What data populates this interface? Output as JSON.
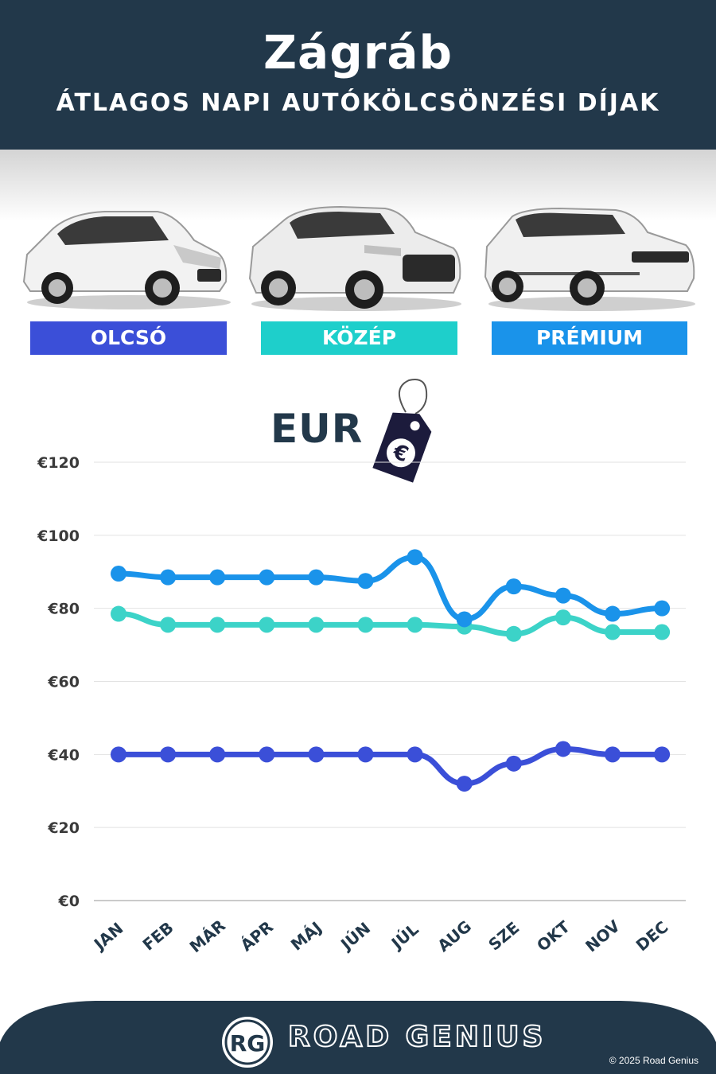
{
  "header": {
    "title": "Zágráb",
    "subtitle": "ÁTLAGOS NAPI AUTÓKÖLCSÖNZÉSI DÍJAK"
  },
  "tiers": [
    {
      "label": "OLCSÓ",
      "color": "#3b4fd8"
    },
    {
      "label": "KÖZÉP",
      "color": "#1ecfcb"
    },
    {
      "label": "PRÉMIUM",
      "color": "#1a93ea"
    }
  ],
  "currency": {
    "label": "EUR",
    "symbol": "€",
    "tag_icon": "euro-price-tag-icon"
  },
  "chart_data": {
    "type": "line",
    "categories": [
      "JAN",
      "FEB",
      "MÁR",
      "ÁPR",
      "MÁJ",
      "JÚN",
      "JÚL",
      "AUG",
      "SZE",
      "OKT",
      "NOV",
      "DEC"
    ],
    "ylim": [
      0,
      120
    ],
    "yticks": [
      0,
      20,
      40,
      60,
      80,
      100,
      120
    ],
    "ytick_labels": [
      "€0",
      "€20",
      "€40",
      "€60",
      "€80",
      "€100",
      "€120"
    ],
    "grid": true,
    "series": [
      {
        "name": "PRÉMIUM",
        "color": "#1a93ea",
        "values": [
          89.5,
          88.5,
          88.5,
          88.5,
          88.5,
          87.5,
          94,
          77,
          86,
          83.5,
          78.5,
          80
        ]
      },
      {
        "name": "KÖZÉP",
        "color": "#3cd3c8",
        "values": [
          78.5,
          75.5,
          75.5,
          75.5,
          75.5,
          75.5,
          75.5,
          75,
          73,
          77.5,
          73.5,
          73.5
        ]
      },
      {
        "name": "OLCSÓ",
        "color": "#3b4fd8",
        "values": [
          40,
          40,
          40,
          40,
          40,
          40,
          40,
          32,
          37.5,
          41.5,
          40,
          40
        ]
      }
    ]
  },
  "footer": {
    "logo": "RG",
    "brand": "ROAD GENIUS",
    "copyright": "© 2025 Road Genius"
  }
}
